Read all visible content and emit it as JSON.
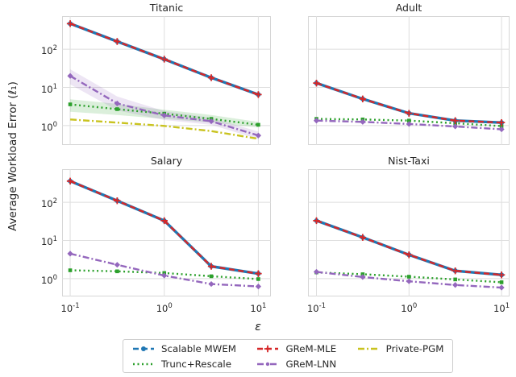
{
  "figure": {
    "ylabel": "Average Workload Error (ℓ₁)",
    "xlabel": "ε",
    "background": "#ffffff",
    "grid_color": "#dedede",
    "text_color": "#262626"
  },
  "legend": {
    "items": [
      {
        "label": "Scalable MWEM",
        "color": "#1f77b4",
        "dash": "7 4",
        "marker": "circle"
      },
      {
        "label": "Trunc+Rescale",
        "color": "#2ca02c",
        "dash": "2 3.5",
        "marker": "none"
      },
      {
        "label": "GReM-MLE",
        "color": "#d62728",
        "dash": "7 4",
        "marker": "plus"
      },
      {
        "label": "GReM-LNN",
        "color": "#9467bd",
        "dash": "8 3 2 3",
        "marker": "dot"
      },
      {
        "label": "Private-PGM",
        "color": "#c9c320",
        "dash": "8 3 2 3",
        "marker": "none"
      }
    ]
  },
  "chart_data": [
    {
      "type": "line",
      "title": "Titanic",
      "xscale": "log",
      "yscale": "log",
      "x": [
        0.1,
        0.316,
        1,
        3.16,
        10
      ],
      "xlim": [
        0.082,
        13.6
      ],
      "ylim": [
        0.31,
        740
      ],
      "xticks": [
        0.1,
        1,
        10
      ],
      "yticks": [
        1,
        10,
        100
      ],
      "ytick_labels": [
        "10^0",
        "10^1",
        "10^2"
      ],
      "grid": true,
      "series": [
        {
          "name": "Private-PGM",
          "color": "#c9c320",
          "dash": "8 3 2 3",
          "marker": "none",
          "values": [
            1.45,
            1.2,
            0.98,
            0.72,
            0.45
          ]
        },
        {
          "name": "Trunc+Rescale",
          "color": "#2ca02c",
          "dash": "2 3.5",
          "marker": "square",
          "values": [
            3.6,
            2.7,
            2.05,
            1.5,
            1.05
          ],
          "band_lo": [
            2.3,
            1.9,
            1.5,
            1.2,
            0.9
          ],
          "band_hi": [
            4.9,
            3.7,
            2.6,
            1.9,
            1.25
          ]
        },
        {
          "name": "GReM-LNN",
          "color": "#9467bd",
          "dash": "8 3 2 3",
          "marker": "diamond",
          "values": [
            20,
            3.8,
            1.85,
            1.3,
            0.55
          ],
          "band_lo": [
            12,
            2.5,
            1.4,
            1.05,
            0.44
          ],
          "band_hi": [
            30,
            5.8,
            2.4,
            1.6,
            0.7
          ]
        },
        {
          "name": "Scalable MWEM",
          "color": "#1f77b4",
          "dash": "",
          "marker": "circle",
          "values": [
            470,
            160,
            55,
            18,
            6.5
          ]
        },
        {
          "name": "GReM-MLE",
          "color": "#d62728",
          "dash": "7 4.5",
          "marker": "plus",
          "values": [
            470,
            160,
            55,
            18,
            6.5
          ]
        }
      ]
    },
    {
      "type": "line",
      "title": "Adult",
      "xscale": "log",
      "yscale": "log",
      "x": [
        0.1,
        0.316,
        1,
        3.16,
        10
      ],
      "xlim": [
        0.081,
        12.2
      ],
      "ylim": [
        0.31,
        740
      ],
      "xticks": [
        0.1,
        1,
        10
      ],
      "yticks": [
        1,
        10,
        100
      ],
      "grid": true,
      "series": [
        {
          "name": "Trunc+Rescale",
          "color": "#2ca02c",
          "dash": "2 3.5",
          "marker": "square",
          "values": [
            1.5,
            1.45,
            1.35,
            1.15,
            0.97
          ]
        },
        {
          "name": "GReM-LNN",
          "color": "#9467bd",
          "dash": "8 3 2 3",
          "marker": "diamond",
          "values": [
            1.35,
            1.25,
            1.1,
            0.95,
            0.8
          ]
        },
        {
          "name": "Scalable MWEM",
          "color": "#1f77b4",
          "dash": "",
          "marker": "circle",
          "values": [
            13,
            5,
            2.1,
            1.35,
            1.2
          ]
        },
        {
          "name": "GReM-MLE",
          "color": "#d62728",
          "dash": "7 4.5",
          "marker": "plus",
          "values": [
            13,
            5,
            2.1,
            1.35,
            1.2
          ]
        }
      ]
    },
    {
      "type": "line",
      "title": "Salary",
      "xscale": "log",
      "yscale": "log",
      "x": [
        0.1,
        0.316,
        1,
        3.16,
        10
      ],
      "xlim": [
        0.082,
        13.6
      ],
      "ylim": [
        0.34,
        740
      ],
      "xticks": [
        0.1,
        1,
        10
      ],
      "yticks": [
        1,
        10,
        100
      ],
      "ytick_labels": [
        "10^0",
        "10^1",
        "10^2"
      ],
      "xtick_labels": [
        "10^-1",
        "10^0",
        "10^1"
      ],
      "grid": true,
      "series": [
        {
          "name": "Trunc+Rescale",
          "color": "#2ca02c",
          "dash": "2 3.5",
          "marker": "square",
          "values": [
            1.65,
            1.55,
            1.4,
            1.15,
            0.97
          ]
        },
        {
          "name": "GReM-LNN",
          "color": "#9467bd",
          "dash": "8 3 2 3",
          "marker": "diamond",
          "values": [
            4.5,
            2.3,
            1.2,
            0.72,
            0.62
          ]
        },
        {
          "name": "Scalable MWEM",
          "color": "#1f77b4",
          "dash": "",
          "marker": "circle",
          "values": [
            360,
            110,
            33,
            2.1,
            1.35
          ]
        },
        {
          "name": "GReM-MLE",
          "color": "#d62728",
          "dash": "7 4.5",
          "marker": "plus",
          "values": [
            360,
            110,
            33,
            2.1,
            1.35
          ]
        }
      ]
    },
    {
      "type": "line",
      "title": "Nist-Taxi",
      "xscale": "log",
      "yscale": "log",
      "x": [
        0.1,
        0.316,
        1,
        3.16,
        10
      ],
      "xlim": [
        0.081,
        12.2
      ],
      "ylim": [
        0.34,
        740
      ],
      "xticks": [
        0.1,
        1,
        10
      ],
      "yticks": [
        1,
        10,
        100
      ],
      "xtick_labels": [
        "10^-1",
        "10^0",
        "10^1"
      ],
      "grid": true,
      "series": [
        {
          "name": "Trunc+Rescale",
          "color": "#2ca02c",
          "dash": "2 3.5",
          "marker": "square",
          "values": [
            1.45,
            1.3,
            1.12,
            0.95,
            0.8
          ]
        },
        {
          "name": "GReM-LNN",
          "color": "#9467bd",
          "dash": "8 3 2 3",
          "marker": "diamond",
          "values": [
            1.5,
            1.1,
            0.85,
            0.68,
            0.58
          ]
        },
        {
          "name": "Scalable MWEM",
          "color": "#1f77b4",
          "dash": "",
          "marker": "circle",
          "values": [
            33,
            12,
            4.2,
            1.6,
            1.25
          ]
        },
        {
          "name": "GReM-MLE",
          "color": "#d62728",
          "dash": "7 4.5",
          "marker": "plus",
          "values": [
            33,
            12,
            4.2,
            1.6,
            1.25
          ]
        }
      ]
    }
  ]
}
